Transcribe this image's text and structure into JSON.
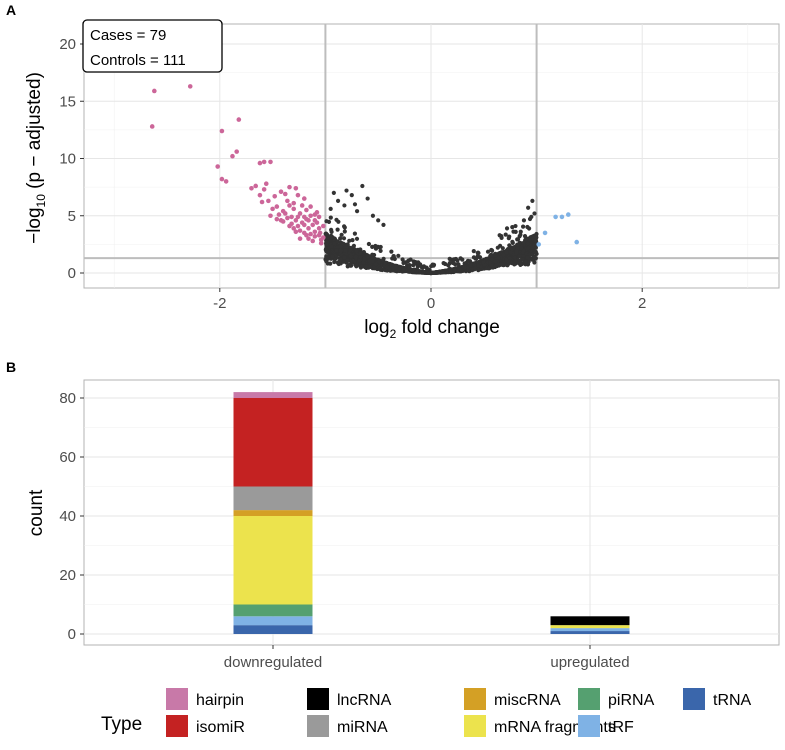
{
  "chart_data": [
    {
      "panel": "A",
      "type": "scatter",
      "title": "",
      "xlabel_main": "log",
      "xlabel_sub": "2",
      "xlabel_rest": " fold change",
      "ylabel_pre": "−log",
      "ylabel_sub": "10",
      "ylabel_post": " (p − adjusted)",
      "xlim": [
        -3.3,
        3.3
      ],
      "ylim": [
        -1,
        21.5
      ],
      "x_ticks": [
        -2,
        0,
        2
      ],
      "x_tick_labels": [
        "-2",
        "0",
        "2"
      ],
      "y_ticks": [
        0,
        5,
        10,
        15,
        20
      ],
      "y_tick_labels": [
        "0",
        "5",
        "10",
        "15",
        "20"
      ],
      "vlines": [
        -1,
        1
      ],
      "hline": 1.3,
      "annotation": [
        "Cases = 79",
        "Controls = 111"
      ],
      "colors": {
        "down": "#cc6699",
        "up": "#7fb2e5",
        "ns": "#333333"
      },
      "series": [
        {
          "name": "downregulated",
          "color": "#cc6699",
          "points": [
            [
              -2.62,
              15.9
            ],
            [
              -2.28,
              16.3
            ],
            [
              -2.64,
              12.8
            ],
            [
              -1.98,
              12.4
            ],
            [
              -1.82,
              13.4
            ],
            [
              -1.88,
              10.2
            ],
            [
              -1.84,
              10.6
            ],
            [
              -2.02,
              9.3
            ],
            [
              -1.98,
              8.2
            ],
            [
              -1.94,
              8.0
            ],
            [
              -1.62,
              9.6
            ],
            [
              -1.58,
              9.7
            ],
            [
              -1.52,
              9.7
            ],
            [
              -1.66,
              7.6
            ],
            [
              -1.58,
              7.3
            ],
            [
              -1.62,
              6.8
            ],
            [
              -1.54,
              6.3
            ],
            [
              -1.42,
              7.1
            ],
            [
              -1.34,
              7.5
            ],
            [
              -1.28,
              7.4
            ],
            [
              -1.38,
              6.9
            ],
            [
              -1.26,
              6.8
            ],
            [
              -1.2,
              6.5
            ],
            [
              -1.46,
              5.8
            ],
            [
              -1.4,
              5.4
            ],
            [
              -1.34,
              5.9
            ],
            [
              -1.3,
              5.6
            ],
            [
              -1.24,
              5.2
            ],
            [
              -1.18,
              5.5
            ],
            [
              -1.36,
              4.8
            ],
            [
              -1.28,
              4.6
            ],
            [
              -1.22,
              4.4
            ],
            [
              -1.16,
              4.6
            ],
            [
              -1.12,
              4.2
            ],
            [
              -1.3,
              3.9
            ],
            [
              -1.24,
              3.7
            ],
            [
              -1.16,
              3.9
            ],
            [
              -1.1,
              3.6
            ],
            [
              -1.08,
              4.4
            ],
            [
              -1.06,
              4.9
            ],
            [
              -1.14,
              5.0
            ],
            [
              -1.2,
              4.2
            ],
            [
              -1.26,
              4.1
            ],
            [
              -1.32,
              4.3
            ],
            [
              -1.1,
              3.2
            ],
            [
              -1.18,
              3.3
            ],
            [
              -1.05,
              3.5
            ],
            [
              -1.04,
              2.9
            ],
            [
              -1.12,
              2.8
            ],
            [
              -1.14,
              5.8
            ],
            [
              -1.08,
              5.3
            ],
            [
              -1.2,
              4.9
            ],
            [
              -1.44,
              5.1
            ],
            [
              -1.5,
              5.6
            ],
            [
              -1.56,
              7.8
            ],
            [
              -1.7,
              7.4
            ],
            [
              -1.48,
              6.7
            ],
            [
              -1.36,
              6.3
            ],
            [
              -1.3,
              6.1
            ],
            [
              -1.22,
              5.9
            ],
            [
              -1.16,
              3.0
            ],
            [
              -1.06,
              3.9
            ],
            [
              -1.4,
              4.5
            ],
            [
              -1.46,
              4.7
            ],
            [
              -1.02,
              4.1
            ],
            [
              -1.04,
              2.6
            ],
            [
              -1.24,
              3.0
            ],
            [
              -1.38,
              5.2
            ],
            [
              -1.32,
              4.9
            ],
            [
              -1.18,
              4.7
            ],
            [
              -1.1,
              4.6
            ],
            [
              -1.6,
              6.2
            ],
            [
              -1.52,
              5.0
            ],
            [
              -1.26,
              4.9
            ],
            [
              -1.2,
              3.5
            ],
            [
              -1.14,
              3.4
            ],
            [
              -1.28,
              3.6
            ],
            [
              -1.06,
              3.3
            ],
            [
              -1.02,
              3.1
            ],
            [
              -1.1,
              5.1
            ],
            [
              -1.34,
              4.1
            ],
            [
              -1.42,
              4.6
            ]
          ]
        },
        {
          "name": "upregulated",
          "color": "#7fb2e5",
          "points": [
            [
              1.08,
              3.5
            ],
            [
              1.18,
              4.9
            ],
            [
              1.24,
              4.9
            ],
            [
              1.3,
              5.1
            ],
            [
              1.38,
              2.7
            ],
            [
              1.02,
              2.5
            ]
          ]
        }
      ],
      "ns_points_note": "approx. 2000 non-significant points forming a V-shape between log2FC -1 and 1"
    },
    {
      "panel": "B",
      "type": "bar",
      "stacked": true,
      "xlabel": "",
      "ylabel": "count",
      "ylim": [
        0,
        86
      ],
      "y_ticks": [
        0,
        20,
        40,
        60,
        80
      ],
      "y_tick_labels": [
        "0",
        "20",
        "40",
        "60",
        "80"
      ],
      "categories": [
        "downregulated",
        "upregulated"
      ],
      "series": [
        {
          "name": "tRNA",
          "color": "#3a66ab",
          "values": [
            3,
            1
          ]
        },
        {
          "name": "tRF",
          "color": "#7fb2e5",
          "values": [
            3,
            1
          ]
        },
        {
          "name": "piRNA",
          "color": "#55a070",
          "values": [
            4,
            0
          ]
        },
        {
          "name": "mRNA fragments",
          "color": "#ece34d",
          "values": [
            30,
            1
          ]
        },
        {
          "name": "miscRNA",
          "color": "#d4a025",
          "values": [
            2,
            0
          ]
        },
        {
          "name": "miRNA",
          "color": "#9a9a9a",
          "values": [
            8,
            0
          ]
        },
        {
          "name": "lncRNA",
          "color": "#000000",
          "values": [
            0,
            3
          ]
        },
        {
          "name": "isomiR",
          "color": "#c42222",
          "values": [
            30,
            0
          ]
        },
        {
          "name": "hairpin",
          "color": "#c879a8",
          "values": [
            2,
            0
          ]
        }
      ],
      "legend": {
        "title": "Type",
        "placement": "bottom",
        "items": [
          {
            "label": "hairpin",
            "color": "#c879a8"
          },
          {
            "label": "isomiR",
            "color": "#c42222"
          },
          {
            "label": "lncRNA",
            "color": "#000000"
          },
          {
            "label": "miRNA",
            "color": "#9a9a9a"
          },
          {
            "label": "miscRNA",
            "color": "#d4a025"
          },
          {
            "label": "mRNA fragments",
            "color": "#ece34d"
          },
          {
            "label": "piRNA",
            "color": "#55a070"
          },
          {
            "label": "tRF",
            "color": "#7fb2e5"
          },
          {
            "label": "tRNA",
            "color": "#3a66ab"
          }
        ]
      }
    }
  ],
  "panel_labels": [
    "A",
    "B"
  ]
}
